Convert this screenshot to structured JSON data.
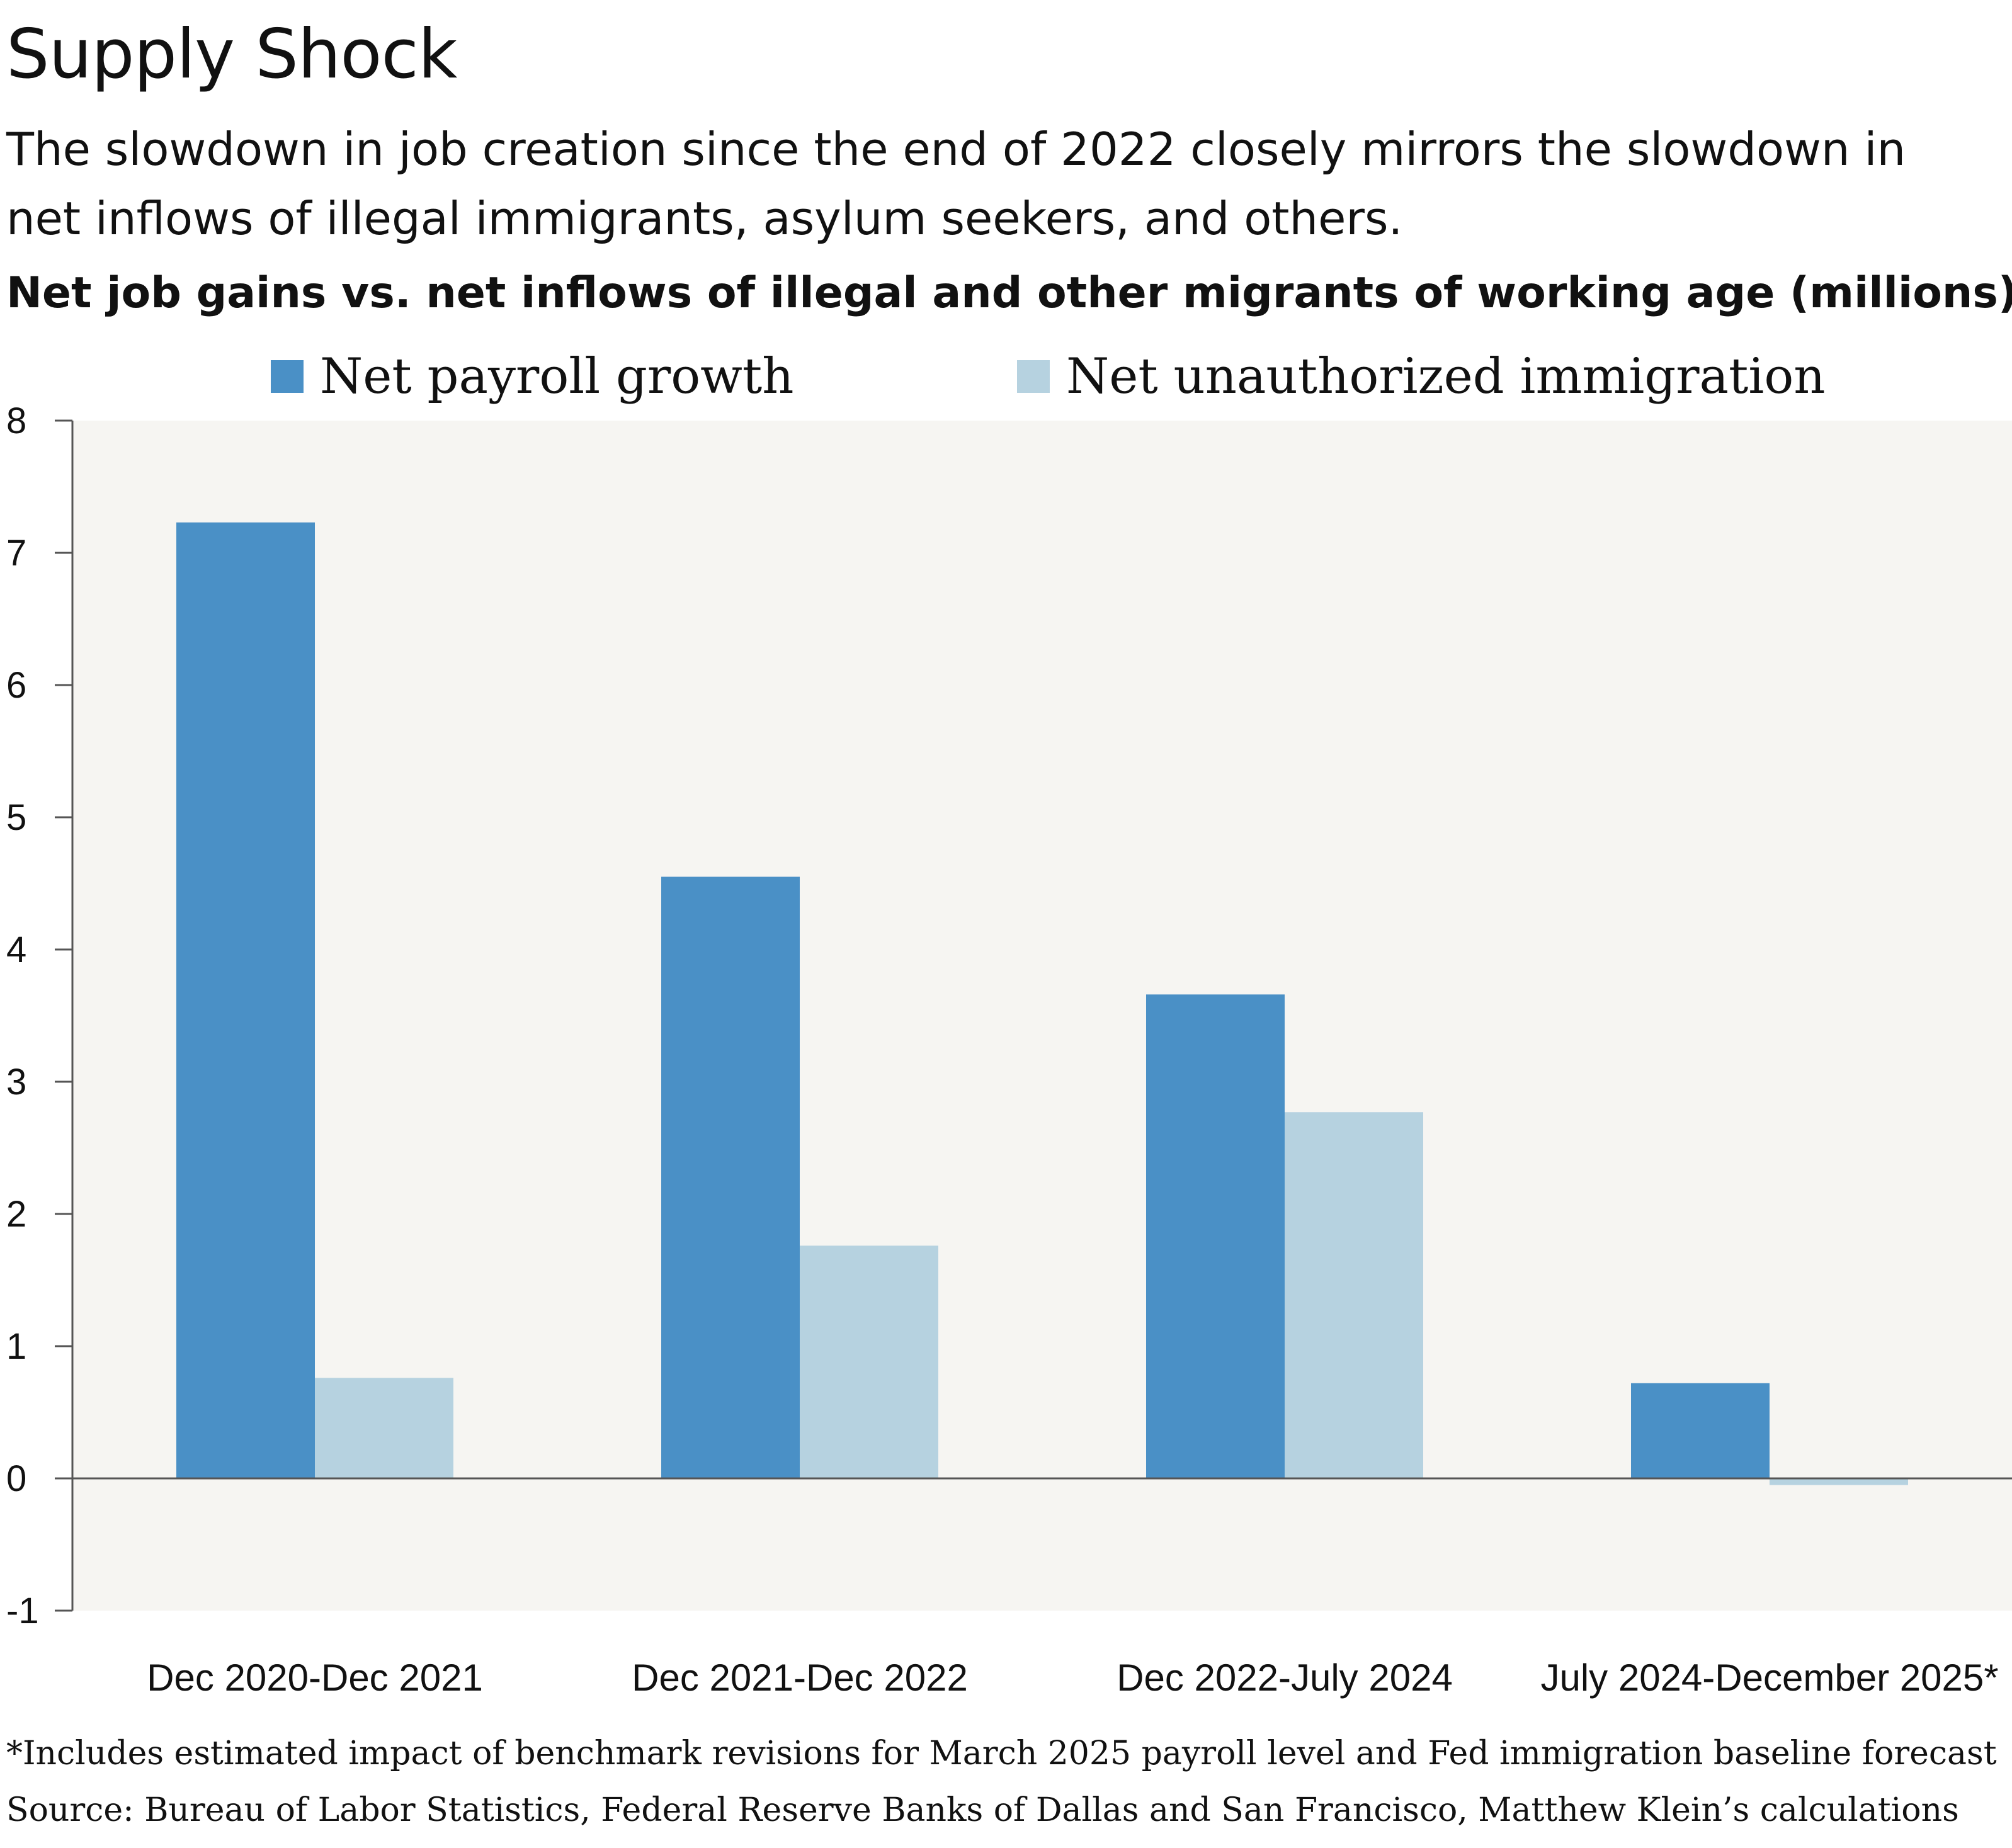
{
  "title": "Supply Shock",
  "subtitle": "The slowdown in job creation since the end of 2022 closely mirrors the slowdown in net inflows of illegal immigrants, asylum seekers, and others.",
  "chart_heading": "Net job gains vs. net inflows of illegal and other migrants of working age (millions)",
  "footnotes": {
    "note": "*Includes estimated impact of benchmark revisions for March 2025 payroll level and Fed immigration baseline forecast",
    "source": "Source: Bureau of Labor Statistics, Federal Reserve Banks of Dallas and San Francisco, Matthew Klein’s calculations"
  },
  "colors": {
    "payroll": "#4a90c6",
    "immigration": "#b6d2e0",
    "plot_bg": "#f6f5f2",
    "axis": "#555555"
  },
  "chart_data": {
    "type": "bar",
    "title": "Net job gains vs. net inflows of illegal and other migrants of working age (millions)",
    "xlabel": "",
    "ylabel": "",
    "ylim": [
      -1,
      8
    ],
    "yticks": [
      -1,
      0,
      1,
      2,
      3,
      4,
      5,
      6,
      7,
      8
    ],
    "grid": false,
    "legend_position": "top",
    "categories": [
      "Dec 2020-Dec 2021",
      "Dec 2021-Dec 2022",
      "Dec 2022-July 2024",
      "July 2024-December 2025*"
    ],
    "series": [
      {
        "name": "Net payroll growth",
        "values": [
          7.23,
          4.55,
          3.66,
          0.72
        ]
      },
      {
        "name": "Net unauthorized immigration",
        "values": [
          0.76,
          1.76,
          2.77,
          -0.05
        ]
      }
    ]
  }
}
